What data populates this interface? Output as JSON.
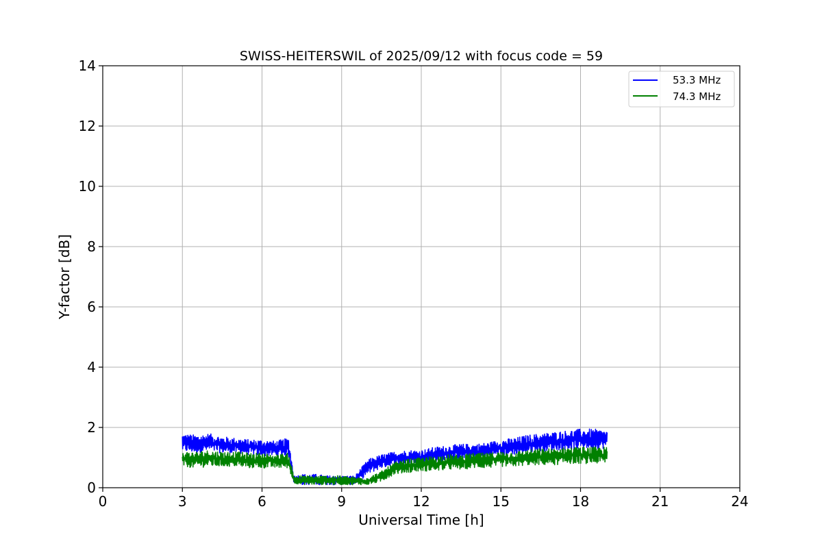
{
  "chart_data": {
    "type": "line",
    "title": "SWISS-HEITERSWIL of 2025/09/12 with focus code = 59",
    "xlabel": "Universal Time [h]",
    "ylabel": "Y-factor [dB]",
    "xlim": [
      0,
      24
    ],
    "ylim": [
      0,
      14
    ],
    "xticks": [
      "0",
      "3",
      "6",
      "9",
      "12",
      "15",
      "18",
      "21",
      "24"
    ],
    "yticks": [
      "0",
      "2",
      "4",
      "6",
      "8",
      "10",
      "12",
      "14"
    ],
    "grid": true,
    "legend_position": "top-right",
    "series": [
      {
        "name": "53.3 MHz",
        "color": "#0000ff",
        "x": [
          3.0,
          3.5,
          4.0,
          4.5,
          5.0,
          5.5,
          6.0,
          6.5,
          7.0,
          7.2,
          7.5,
          8.0,
          8.5,
          9.0,
          9.5,
          10.0,
          10.5,
          11.0,
          11.5,
          12.0,
          12.5,
          13.0,
          13.5,
          14.0,
          14.5,
          15.0,
          15.5,
          16.0,
          16.5,
          17.0,
          17.5,
          18.0,
          18.5,
          19.0
        ],
        "y_low": [
          1.2,
          1.15,
          1.2,
          1.15,
          1.15,
          1.1,
          1.05,
          1.05,
          1.05,
          0.15,
          0.1,
          0.1,
          0.1,
          0.1,
          0.1,
          0.45,
          0.65,
          0.75,
          0.8,
          0.8,
          0.85,
          0.9,
          0.95,
          0.95,
          1.0,
          1.05,
          1.1,
          1.15,
          1.2,
          1.25,
          1.25,
          1.3,
          1.3,
          1.3
        ],
        "y_high": [
          1.8,
          1.75,
          1.8,
          1.7,
          1.65,
          1.6,
          1.6,
          1.55,
          1.65,
          0.4,
          0.45,
          0.45,
          0.4,
          0.4,
          0.4,
          0.95,
          1.1,
          1.2,
          1.25,
          1.25,
          1.35,
          1.4,
          1.45,
          1.45,
          1.5,
          1.6,
          1.65,
          1.75,
          1.8,
          1.85,
          1.9,
          1.95,
          1.95,
          1.9
        ]
      },
      {
        "name": "74.3 MHz",
        "color": "#008000",
        "x": [
          3.0,
          3.5,
          4.0,
          4.5,
          5.0,
          5.5,
          6.0,
          6.5,
          7.0,
          7.2,
          7.5,
          8.0,
          8.5,
          9.0,
          9.5,
          10.0,
          10.5,
          11.0,
          11.5,
          12.0,
          12.5,
          13.0,
          13.5,
          14.0,
          14.5,
          15.0,
          15.5,
          16.0,
          16.5,
          17.0,
          17.5,
          18.0,
          18.5,
          19.0
        ],
        "y_low": [
          0.7,
          0.65,
          0.7,
          0.7,
          0.7,
          0.65,
          0.65,
          0.65,
          0.65,
          0.15,
          0.1,
          0.1,
          0.1,
          0.1,
          0.1,
          0.1,
          0.2,
          0.45,
          0.5,
          0.55,
          0.55,
          0.6,
          0.6,
          0.65,
          0.65,
          0.7,
          0.7,
          0.75,
          0.75,
          0.75,
          0.8,
          0.8,
          0.8,
          0.8
        ],
        "y_high": [
          1.2,
          1.2,
          1.25,
          1.2,
          1.2,
          1.15,
          1.15,
          1.1,
          1.15,
          0.4,
          0.4,
          0.4,
          0.4,
          0.4,
          0.35,
          0.35,
          0.55,
          0.85,
          0.95,
          1.0,
          1.05,
          1.1,
          1.1,
          1.15,
          1.15,
          1.2,
          1.2,
          1.25,
          1.3,
          1.3,
          1.35,
          1.35,
          1.35,
          1.35
        ]
      }
    ]
  }
}
